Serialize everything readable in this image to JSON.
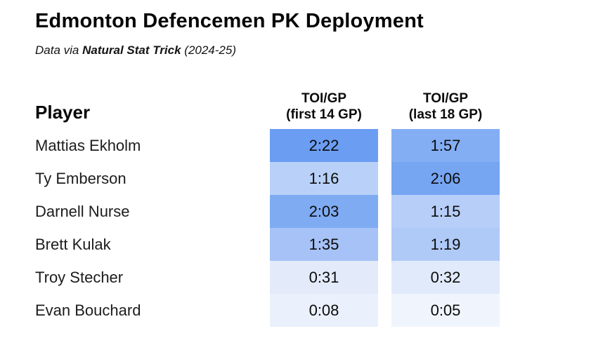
{
  "header": {
    "title": "Edmonton Defencemen PK Deployment",
    "subtitle_prefix": "Data via ",
    "subtitle_source": "Natural Stat Trick",
    "subtitle_suffix": " (2024-25)"
  },
  "table": {
    "player_header": "Player",
    "columns": [
      {
        "line1": "TOI/GP",
        "line2": "(first 14 GP)"
      },
      {
        "line1": "TOI/GP",
        "line2": "(last 18 GP)"
      }
    ],
    "rows": [
      {
        "player": "Mattias Ekholm",
        "first": "2:22",
        "first_color": "#6b9df3",
        "last": "1:57",
        "last_color": "#84aef4"
      },
      {
        "player": "Ty Emberson",
        "first": "1:16",
        "first_color": "#b9d1f8",
        "last": "2:06",
        "last_color": "#76a5f2"
      },
      {
        "player": "Darnell Nurse",
        "first": "2:03",
        "first_color": "#7fabf3",
        "last": "1:15",
        "last_color": "#b6cef8"
      },
      {
        "player": "Brett Kulak",
        "first": "1:35",
        "first_color": "#a6c2f6",
        "last": "1:19",
        "last_color": "#b0caf7"
      },
      {
        "player": "Troy Stecher",
        "first": "0:31",
        "first_color": "#e3ebfb",
        "last": "0:32",
        "last_color": "#e1eafb"
      },
      {
        "player": "Evan Bouchard",
        "first": "0:08",
        "first_color": "#eaf0fc",
        "last": "0:05",
        "last_color": "#f0f5fd"
      }
    ]
  },
  "chart_data": {
    "type": "heatmap",
    "title": "Edmonton Defencemen PK Deployment",
    "subtitle": "Data via Natural Stat Trick (2024-25)",
    "row_label_header": "Player",
    "rows": [
      "Mattias Ekholm",
      "Ty Emberson",
      "Darnell Nurse",
      "Brett Kulak",
      "Troy Stecher",
      "Evan Bouchard"
    ],
    "columns": [
      "TOI/GP (first 14 GP)",
      "TOI/GP (last 18 GP)"
    ],
    "values_mmss": [
      [
        "2:22",
        "1:57"
      ],
      [
        "1:16",
        "2:06"
      ],
      [
        "2:03",
        "1:15"
      ],
      [
        "1:35",
        "1:19"
      ],
      [
        "0:31",
        "0:32"
      ],
      [
        "0:08",
        "0:05"
      ]
    ],
    "values_seconds": [
      [
        142,
        117
      ],
      [
        76,
        126
      ],
      [
        123,
        75
      ],
      [
        95,
        79
      ],
      [
        31,
        32
      ],
      [
        8,
        5
      ]
    ],
    "color_scale": {
      "min_value_color": "#ffffff",
      "max_value_color": "#6b9df3"
    },
    "legend": "none",
    "grid": false
  }
}
